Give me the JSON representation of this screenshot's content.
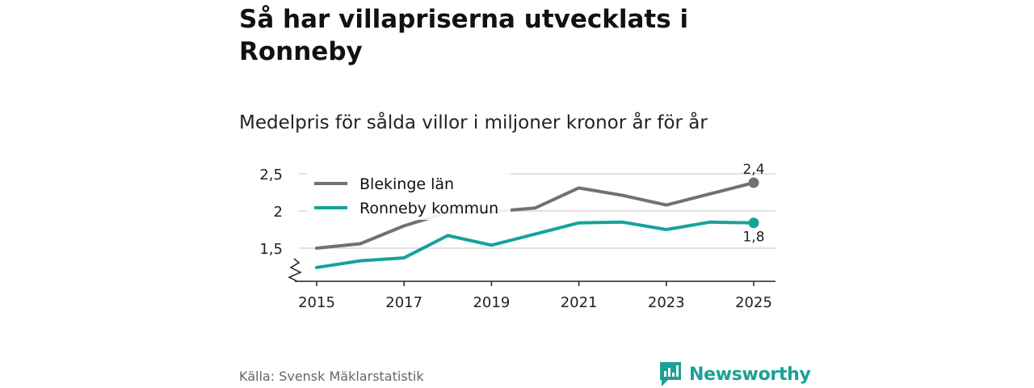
{
  "header": {
    "title": "Så har villapriserna utvecklats i Ronneby",
    "subtitle": "Medelpris för sålda villor i miljoner kronor år för år"
  },
  "footer": {
    "source": "Källa: Svensk Mäklarstatistik",
    "brand": "Newsworthy"
  },
  "colors": {
    "blekinge": "#727077",
    "ronneby": "#14a39a",
    "grid": "#d9d9d9",
    "axis": "#222222",
    "brand": "#1aa096"
  },
  "icons": {
    "brand_logo": "newsworthy-logo-icon",
    "axis_break": "axis-break-icon"
  },
  "chart_data": {
    "type": "line",
    "title": "Medelpris för sålda villor i miljoner kronor år för år",
    "xlabel": "",
    "ylabel": "",
    "x": [
      2015,
      2016,
      2017,
      2018,
      2019,
      2020,
      2021,
      2022,
      2023,
      2024,
      2025
    ],
    "x_tick_values": [
      2015,
      2017,
      2019,
      2021,
      2023,
      2025
    ],
    "x_tick_labels": [
      "2015",
      "2017",
      "2019",
      "2021",
      "2023",
      "2025"
    ],
    "y_tick_values": [
      1.5,
      2,
      2.5
    ],
    "y_tick_labels": [
      "1,5",
      "2",
      "2,5"
    ],
    "ylim": [
      1.1,
      2.6
    ],
    "y_axis_break": true,
    "grid": true,
    "legend_position": "top-left",
    "series": [
      {
        "name": "Blekinge län",
        "color_key": "blekinge",
        "values": [
          1.5,
          1.56,
          1.8,
          1.98,
          1.99,
          2.04,
          2.31,
          2.21,
          2.08,
          2.23,
          2.38
        ],
        "end_label": "2,4"
      },
      {
        "name": "Ronneby kommun",
        "color_key": "ronneby",
        "values": [
          1.24,
          1.33,
          1.37,
          1.67,
          1.54,
          1.69,
          1.84,
          1.85,
          1.75,
          1.85,
          1.84
        ],
        "end_label": "1,8"
      }
    ]
  }
}
